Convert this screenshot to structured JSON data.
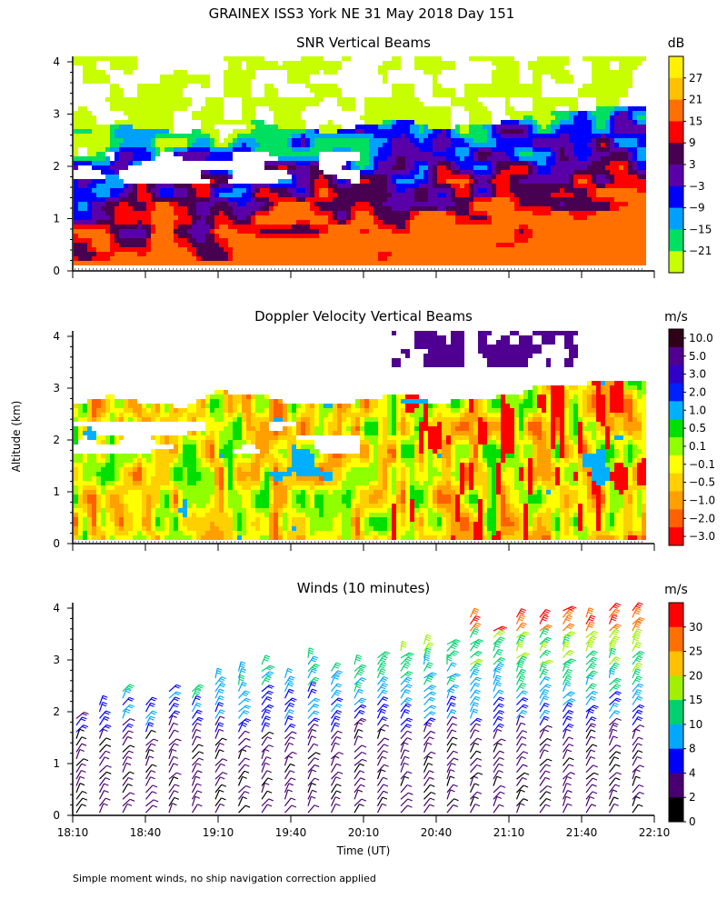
{
  "figure": {
    "title": "GRAINEX ISS3 York NE  31 May 2018 Day 151",
    "y_axis_label": "Altitude (km)",
    "x_axis_label": "Time (UT)",
    "footnote": "Simple moment winds, no ship navigation correction applied"
  },
  "chart_data": [
    {
      "type": "heatmap",
      "title": "SNR Vertical Beams",
      "colorbar_unit": "dB",
      "colorbar_labels": [
        "27",
        "21",
        "15",
        "9",
        "3",
        "−3",
        "−9",
        "−15",
        "−21"
      ],
      "colorbar_colors": [
        "#fff000",
        "#ffc000",
        "#ff7000",
        "#ff0000",
        "#480050",
        "#5a00a8",
        "#0000ff",
        "#00a0ff",
        "#00e060",
        "#c8ff00"
      ],
      "xlabel": "",
      "ylabel": "Altitude (km)",
      "x_ticks": [
        "18:10",
        "18:40",
        "19:10",
        "19:40",
        "20:10",
        "20:40",
        "21:10",
        "21:40",
        "22:10"
      ],
      "y_ticks": [
        "0",
        "1",
        "2",
        "3",
        "4"
      ],
      "xlim": [
        "18:10",
        "22:10"
      ],
      "ylim": [
        0,
        4
      ]
    },
    {
      "type": "heatmap",
      "title": "Doppler Velocity Vertical Beams",
      "colorbar_unit": "m/s",
      "colorbar_labels": [
        "10.0",
        "5.0",
        "3.0",
        "2.0",
        "1.0",
        "0.5",
        "0.1",
        "−0.1",
        "−0.5",
        "−1.0",
        "−2.0",
        "−3.0"
      ],
      "colorbar_colors": [
        "#300018",
        "#500090",
        "#3000c8",
        "#0020ff",
        "#00b0ff",
        "#00e000",
        "#90ff00",
        "#ffff00",
        "#ffd000",
        "#ffa000",
        "#ff6000",
        "#ff0000"
      ],
      "xlabel": "",
      "ylabel": "Altitude (km)",
      "x_ticks": [
        "18:10",
        "18:40",
        "19:10",
        "19:40",
        "20:10",
        "20:40",
        "21:10",
        "21:40",
        "22:10"
      ],
      "y_ticks": [
        "0",
        "1",
        "2",
        "3",
        "4"
      ],
      "xlim": [
        "18:10",
        "22:10"
      ],
      "ylim": [
        0,
        4
      ]
    },
    {
      "type": "scatter",
      "title": "Winds (10 minutes)",
      "colorbar_unit": "m/s",
      "colorbar_labels": [
        "30",
        "25",
        "20",
        "15",
        "10",
        "8",
        "4",
        "2",
        "0"
      ],
      "colorbar_colors": [
        "#ff0000",
        "#ff7000",
        "#ffc000",
        "#a0f000",
        "#00d070",
        "#00a8ff",
        "#0000ff",
        "#480070",
        "#000000"
      ],
      "xlabel": "Time (UT)",
      "ylabel": "Altitude (km)",
      "x_ticks": [
        "18:10",
        "18:40",
        "19:10",
        "19:40",
        "20:10",
        "20:40",
        "21:10",
        "21:40",
        "22:10"
      ],
      "y_ticks": [
        "0",
        "1",
        "2",
        "3",
        "4"
      ],
      "xlim": [
        "18:10",
        "22:10"
      ],
      "ylim": [
        0,
        4
      ]
    }
  ]
}
